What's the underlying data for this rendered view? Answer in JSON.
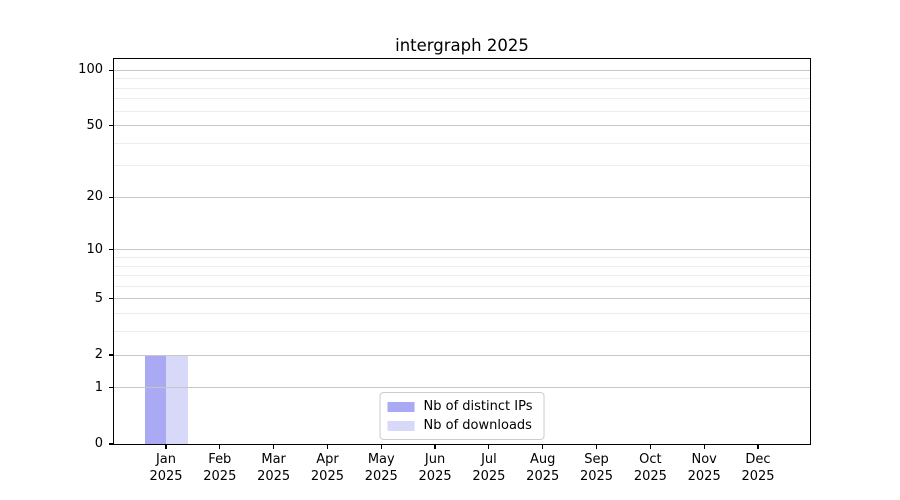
{
  "chart_data": {
    "type": "bar",
    "title": "intergraph 2025",
    "categories": [
      "Jan",
      "Feb",
      "Mar",
      "Apr",
      "May",
      "Jun",
      "Jul",
      "Aug",
      "Sep",
      "Oct",
      "Nov",
      "Dec"
    ],
    "category_year": "2025",
    "series": [
      {
        "name": "Nb of distinct IPs",
        "color": "#a9a9f4",
        "values": [
          2,
          0,
          0,
          0,
          0,
          0,
          0,
          0,
          0,
          0,
          0,
          0
        ]
      },
      {
        "name": "Nb of downloads",
        "color": "#d8d8f9",
        "values": [
          2,
          0,
          0,
          0,
          0,
          0,
          0,
          0,
          0,
          0,
          0,
          0
        ]
      }
    ],
    "xlabel": "",
    "ylabel": "",
    "y_scale": "log10(1+x)",
    "y_ticks": [
      0,
      1,
      2,
      5,
      10,
      20,
      50,
      100
    ],
    "y_minor_gridlines": [
      3,
      4,
      6,
      7,
      8,
      9,
      30,
      40,
      60,
      70,
      80,
      90
    ],
    "ylim": [
      0,
      115
    ],
    "grid": true,
    "legend_position": "lower center",
    "colors": {
      "major_grid": "#c6c6c6",
      "minor_grid": "#ececec",
      "axis": "#000000",
      "background": "#ffffff"
    }
  }
}
